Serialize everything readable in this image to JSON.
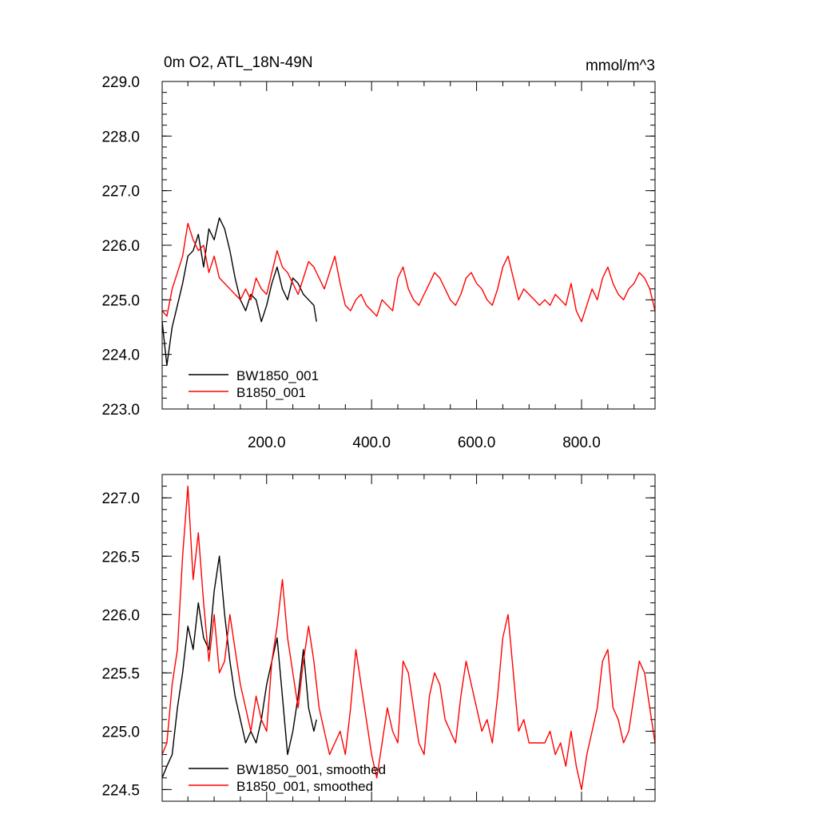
{
  "colors": {
    "series_1": "#000000",
    "series_2": "#ff0000",
    "axis": "#000000",
    "background": "#ffffff"
  },
  "chart_data": [
    {
      "type": "line",
      "title": "0m O2, ATL_18N-49N",
      "units": "mmol/m^3",
      "xlabel": "",
      "ylabel": "",
      "xlim": [
        1,
        940
      ],
      "ylim": [
        223.0,
        229.0
      ],
      "x_ticks": [
        200,
        400,
        600,
        800
      ],
      "x_tick_labels": [
        "200.0",
        "400.0",
        "600.0",
        "800.0"
      ],
      "y_ticks": [
        223,
        224,
        225,
        226,
        227,
        228,
        229
      ],
      "y_tick_labels": [
        "223.0",
        "224.0",
        "225.0",
        "226.0",
        "227.0",
        "228.0",
        "229.0"
      ],
      "grid": false,
      "legend_position": "bottom-left",
      "series": [
        {
          "name": "BW1850_001",
          "color": "#000000",
          "x": [
            1,
            10,
            20,
            30,
            40,
            50,
            60,
            70,
            80,
            90,
            100,
            110,
            120,
            130,
            140,
            150,
            160,
            170,
            180,
            190,
            200,
            210,
            220,
            230,
            240,
            250,
            260,
            270,
            280,
            290,
            295
          ],
          "values": [
            224.6,
            223.8,
            224.5,
            224.9,
            225.3,
            225.8,
            225.9,
            226.2,
            225.6,
            226.3,
            226.1,
            226.5,
            226.3,
            225.9,
            225.4,
            225.0,
            224.8,
            225.1,
            225.0,
            224.6,
            224.9,
            225.3,
            225.6,
            225.2,
            225.0,
            225.4,
            225.3,
            225.1,
            225.0,
            224.9,
            224.6
          ]
        },
        {
          "name": "B1850_001",
          "color": "#ff0000",
          "x": [
            1,
            10,
            20,
            30,
            40,
            50,
            60,
            70,
            80,
            90,
            100,
            110,
            120,
            130,
            140,
            150,
            160,
            170,
            180,
            190,
            200,
            210,
            220,
            230,
            240,
            250,
            260,
            270,
            280,
            290,
            300,
            310,
            320,
            330,
            340,
            350,
            360,
            370,
            380,
            390,
            400,
            410,
            420,
            430,
            440,
            450,
            460,
            470,
            480,
            490,
            500,
            510,
            520,
            530,
            540,
            550,
            560,
            570,
            580,
            590,
            600,
            610,
            620,
            630,
            640,
            650,
            660,
            670,
            680,
            690,
            700,
            710,
            720,
            730,
            740,
            750,
            760,
            770,
            780,
            790,
            800,
            810,
            820,
            830,
            840,
            850,
            860,
            870,
            880,
            890,
            900,
            910,
            920,
            930,
            940
          ],
          "values": [
            224.8,
            224.7,
            225.2,
            225.5,
            225.8,
            226.4,
            226.1,
            225.9,
            226.0,
            225.5,
            225.8,
            225.4,
            225.3,
            225.2,
            225.1,
            225.0,
            225.2,
            225.0,
            225.4,
            225.2,
            225.1,
            225.5,
            225.9,
            225.6,
            225.5,
            225.3,
            225.1,
            225.4,
            225.7,
            225.6,
            225.4,
            225.2,
            225.5,
            225.8,
            225.3,
            224.9,
            224.8,
            225.0,
            225.1,
            224.9,
            224.8,
            224.7,
            225.0,
            224.9,
            224.8,
            225.4,
            225.6,
            225.2,
            225.0,
            224.9,
            225.1,
            225.3,
            225.5,
            225.4,
            225.2,
            225.0,
            224.9,
            225.1,
            225.4,
            225.5,
            225.3,
            225.2,
            225.0,
            224.9,
            225.2,
            225.6,
            225.8,
            225.4,
            225.0,
            225.2,
            225.1,
            225.0,
            224.9,
            225.0,
            224.9,
            225.1,
            225.0,
            224.9,
            225.3,
            224.8,
            224.6,
            224.9,
            225.2,
            225.0,
            225.4,
            225.6,
            225.3,
            225.1,
            225.0,
            225.2,
            225.3,
            225.5,
            225.4,
            225.2,
            224.8
          ]
        }
      ]
    },
    {
      "type": "line",
      "title": "",
      "xlabel": "",
      "ylabel": "",
      "xlim": [
        1,
        940
      ],
      "ylim": [
        224.4,
        227.2
      ],
      "x_ticks": [
        200,
        400,
        600,
        800
      ],
      "x_tick_labels": [
        "",
        "",
        "",
        ""
      ],
      "y_ticks": [
        224.5,
        225.0,
        225.5,
        226.0,
        226.5,
        227.0
      ],
      "y_tick_labels": [
        "224.5",
        "225.0",
        "225.5",
        "226.0",
        "226.5",
        "227.0"
      ],
      "grid": false,
      "legend_position": "bottom-left",
      "series": [
        {
          "name": "BW1850_001, smoothed",
          "color": "#000000",
          "x": [
            1,
            10,
            20,
            30,
            40,
            50,
            60,
            70,
            80,
            90,
            100,
            110,
            120,
            130,
            140,
            150,
            160,
            170,
            180,
            190,
            200,
            210,
            220,
            230,
            240,
            250,
            260,
            270,
            280,
            290,
            295
          ],
          "values": [
            224.6,
            224.7,
            224.8,
            225.2,
            225.5,
            225.9,
            225.7,
            226.1,
            225.8,
            225.7,
            226.2,
            226.5,
            226.0,
            225.6,
            225.3,
            225.1,
            224.9,
            225.0,
            224.9,
            225.1,
            225.4,
            225.6,
            225.8,
            225.3,
            224.8,
            225.0,
            225.3,
            225.7,
            225.2,
            225.0,
            225.1
          ]
        },
        {
          "name": "B1850_001, smoothed",
          "color": "#ff0000",
          "x": [
            1,
            10,
            20,
            30,
            40,
            50,
            60,
            70,
            80,
            90,
            100,
            110,
            120,
            130,
            140,
            150,
            160,
            170,
            180,
            190,
            200,
            210,
            220,
            230,
            240,
            250,
            260,
            270,
            280,
            290,
            300,
            310,
            320,
            330,
            340,
            350,
            360,
            370,
            380,
            390,
            400,
            410,
            420,
            430,
            440,
            450,
            460,
            470,
            480,
            490,
            500,
            510,
            520,
            530,
            540,
            550,
            560,
            570,
            580,
            590,
            600,
            610,
            620,
            630,
            640,
            650,
            660,
            670,
            680,
            690,
            700,
            710,
            720,
            730,
            740,
            750,
            760,
            770,
            780,
            790,
            800,
            810,
            820,
            830,
            840,
            850,
            860,
            870,
            880,
            890,
            900,
            910,
            920,
            930,
            940
          ],
          "values": [
            224.8,
            224.9,
            225.4,
            225.7,
            226.5,
            227.1,
            226.3,
            226.7,
            226.1,
            225.6,
            226.0,
            225.5,
            225.6,
            226.0,
            225.7,
            225.4,
            225.2,
            225.0,
            225.3,
            225.1,
            225.0,
            225.6,
            225.9,
            226.3,
            225.8,
            225.5,
            225.2,
            225.6,
            225.9,
            225.6,
            225.2,
            225.0,
            224.8,
            224.9,
            225.0,
            224.8,
            225.2,
            225.7,
            225.4,
            225.1,
            224.8,
            224.6,
            224.9,
            225.2,
            225.0,
            224.9,
            225.6,
            225.5,
            225.2,
            224.9,
            224.8,
            225.3,
            225.5,
            225.4,
            225.1,
            225.0,
            224.9,
            225.3,
            225.6,
            225.4,
            225.2,
            225.0,
            225.1,
            224.9,
            225.3,
            225.8,
            226.0,
            225.5,
            225.0,
            225.1,
            224.9,
            224.9,
            224.9,
            224.9,
            225.0,
            224.8,
            224.9,
            224.7,
            225.0,
            224.7,
            224.5,
            224.8,
            225.0,
            225.2,
            225.6,
            225.7,
            225.2,
            225.1,
            224.9,
            225.0,
            225.3,
            225.6,
            225.5,
            225.2,
            224.9
          ]
        }
      ]
    }
  ]
}
